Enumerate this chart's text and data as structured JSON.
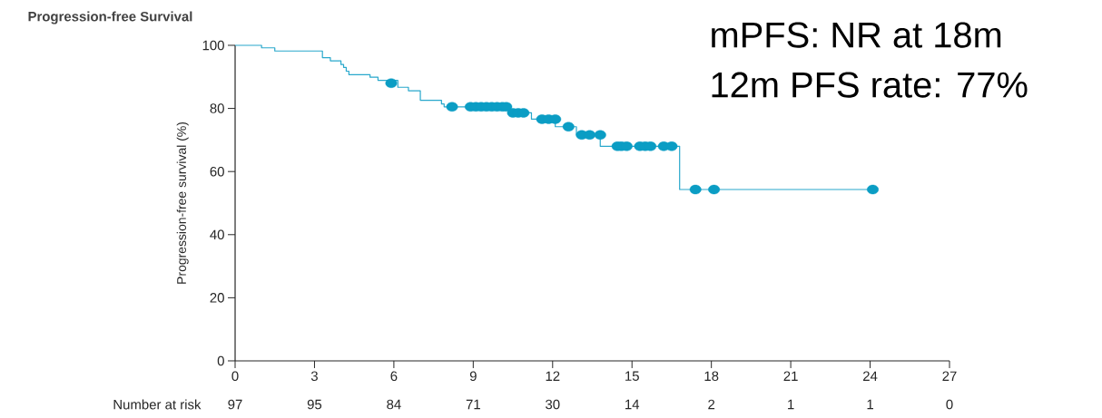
{
  "chart_data": {
    "type": "step",
    "title": "Progression-free Survival",
    "ylabel": "Progression-free survival (%)",
    "xlim": [
      0,
      27
    ],
    "ylim": [
      0,
      100
    ],
    "xticks": [
      0,
      3,
      6,
      9,
      12,
      15,
      18,
      21,
      24,
      27
    ],
    "yticks": [
      0,
      20,
      40,
      60,
      80,
      100
    ],
    "series": [
      {
        "color": "#29a8cc",
        "marker": "none",
        "x": [
          0,
          1.0,
          1.5,
          3.3,
          3.6,
          4.0,
          4.1,
          4.2,
          4.3,
          5.1,
          5.4,
          6.15,
          6.55,
          7.0,
          7.8,
          7.9,
          10.4,
          11.2,
          12.1,
          12.9,
          13.8,
          16.8,
          24.1
        ],
        "values": [
          100,
          99.2,
          98.2,
          96.1,
          95.1,
          93.9,
          93.0,
          91.8,
          90.7,
          89.9,
          88.9,
          86.7,
          85.6,
          82.6,
          81.4,
          80.5,
          78.6,
          76.6,
          74.2,
          71.6,
          68.0,
          54.3,
          54.3
        ]
      },
      {
        "type": "scatter",
        "color": "#0b9dc4",
        "marker": "circle",
        "x": [
          5.9,
          8.2,
          8.9,
          9.1,
          9.3,
          9.5,
          9.7,
          9.9,
          10.1,
          10.25,
          10.5,
          10.7,
          10.9,
          11.6,
          11.85,
          12.1,
          12.6,
          13.1,
          13.4,
          13.8,
          14.45,
          14.6,
          14.8,
          15.3,
          15.5,
          15.7,
          16.2,
          16.5,
          17.4,
          18.1,
          24.1
        ],
        "values": [
          88,
          80.5,
          80.5,
          80.5,
          80.5,
          80.5,
          80.5,
          80.5,
          80.5,
          80.5,
          78.6,
          78.6,
          78.6,
          76.6,
          76.6,
          76.6,
          74.2,
          71.6,
          71.6,
          71.6,
          68,
          68,
          68,
          68,
          68,
          68,
          68,
          68,
          54.3,
          54.3,
          54.3
        ]
      }
    ],
    "annotations": [
      "mPFS: NR at 18m",
      "12m PFS rate: 77%",
      "Number at risk",
      "97",
      "95",
      "84",
      "71",
      "30",
      "14",
      "2",
      "1",
      "1",
      "0"
    ]
  }
}
